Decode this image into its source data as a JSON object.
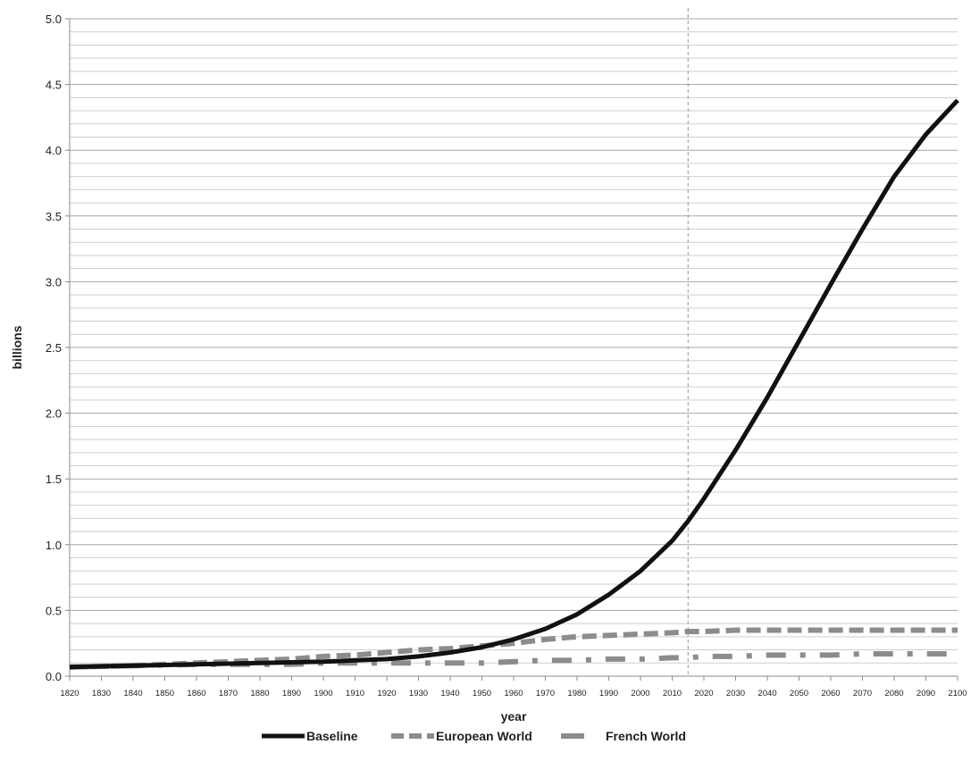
{
  "chart_data": {
    "type": "line",
    "title": "",
    "xlabel": "year",
    "ylabel": "billions",
    "xlim": [
      1820,
      2100
    ],
    "ylim": [
      0,
      5.0
    ],
    "yticks": [
      "0.0",
      "0.5",
      "1.0",
      "1.5",
      "2.0",
      "2.5",
      "3.0",
      "3.5",
      "4.0",
      "4.5",
      "5.0"
    ],
    "xticks": [
      "1820",
      "1830",
      "1840",
      "1850",
      "1860",
      "1870",
      "1880",
      "1890",
      "1900",
      "1910",
      "1920",
      "1930",
      "1940",
      "1950",
      "1960",
      "1970",
      "1980",
      "1990",
      "2000",
      "2010",
      "2020",
      "2030",
      "2040",
      "2050",
      "2060",
      "2070",
      "2080",
      "2090",
      "2100"
    ],
    "grid": "horizontal",
    "minor_gridlines_per_major": 5,
    "vline_x": 2015,
    "legend_position": "bottom",
    "x": [
      1820,
      1830,
      1840,
      1850,
      1860,
      1870,
      1880,
      1890,
      1900,
      1910,
      1920,
      1930,
      1940,
      1950,
      1960,
      1970,
      1980,
      1990,
      2000,
      2010,
      2015,
      2020,
      2030,
      2040,
      2050,
      2060,
      2070,
      2080,
      2090,
      2100
    ],
    "series": [
      {
        "name": "Baseline",
        "color": "#111111",
        "style": "solid",
        "values": [
          0.07,
          0.075,
          0.08,
          0.085,
          0.09,
          0.095,
          0.1,
          0.105,
          0.11,
          0.12,
          0.13,
          0.15,
          0.18,
          0.22,
          0.28,
          0.36,
          0.47,
          0.62,
          0.8,
          1.03,
          1.18,
          1.35,
          1.72,
          2.12,
          2.55,
          2.98,
          3.4,
          3.8,
          4.12,
          4.38
        ]
      },
      {
        "name": "European World",
        "color": "#8c8c8c",
        "style": "dashed",
        "values": [
          0.07,
          0.075,
          0.08,
          0.09,
          0.1,
          0.11,
          0.12,
          0.13,
          0.15,
          0.16,
          0.18,
          0.2,
          0.21,
          0.23,
          0.25,
          0.28,
          0.3,
          0.31,
          0.32,
          0.33,
          0.34,
          0.34,
          0.35,
          0.35,
          0.35,
          0.35,
          0.35,
          0.35,
          0.35,
          0.35
        ]
      },
      {
        "name": "French World",
        "color": "#8c8c8c",
        "style": "dashdot",
        "values": [
          0.07,
          0.075,
          0.08,
          0.085,
          0.09,
          0.09,
          0.09,
          0.09,
          0.1,
          0.1,
          0.1,
          0.1,
          0.1,
          0.1,
          0.11,
          0.12,
          0.12,
          0.13,
          0.13,
          0.14,
          0.14,
          0.15,
          0.15,
          0.16,
          0.16,
          0.16,
          0.17,
          0.17,
          0.17,
          0.17
        ]
      }
    ]
  }
}
